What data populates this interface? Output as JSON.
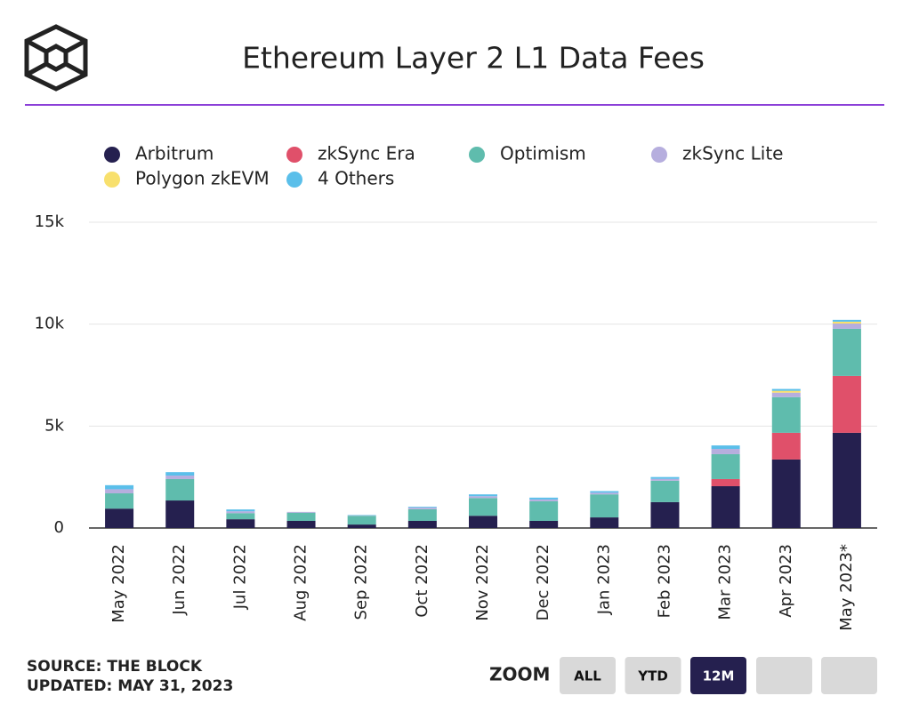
{
  "chart_data": {
    "type": "stacked_bar",
    "title": "Ethereum Layer 2 L1 Data Fees",
    "categories": [
      "May 2022",
      "Jun 2022",
      "Jul 2022",
      "Aug 2022",
      "Sep 2022",
      "Oct 2022",
      "Nov 2022",
      "Dec 2022",
      "Jan 2023",
      "Feb 2023",
      "Mar 2023",
      "Apr 2023",
      "May 2023*"
    ],
    "series": [
      {
        "name": "Arbitrum",
        "color": "#25204f",
        "values": [
          950,
          1350,
          430,
          350,
          170,
          350,
          600,
          350,
          520,
          1270,
          2050,
          3360,
          4670
        ]
      },
      {
        "name": "zkSync Era",
        "color": "#e0506a",
        "values": [
          0,
          0,
          0,
          0,
          0,
          0,
          0,
          0,
          0,
          0,
          350,
          1310,
          2790
        ]
      },
      {
        "name": "Optimism",
        "color": "#5fbcad",
        "values": [
          750,
          1050,
          300,
          400,
          430,
          570,
          870,
          960,
          1130,
          1050,
          1220,
          1750,
          2310
        ]
      },
      {
        "name": "zkSync Lite",
        "color": "#b6aede",
        "values": [
          200,
          170,
          90,
          40,
          20,
          80,
          90,
          90,
          80,
          90,
          260,
          220,
          260
        ]
      },
      {
        "name": "Polygon zkEVM",
        "color": "#f8e06d",
        "values": [
          0,
          0,
          0,
          0,
          0,
          0,
          0,
          0,
          0,
          0,
          0,
          90,
          90
        ]
      },
      {
        "name": "4 Others",
        "color": "#5bbfea",
        "values": [
          200,
          170,
          90,
          0,
          20,
          40,
          90,
          90,
          80,
          90,
          170,
          90,
          90
        ]
      }
    ],
    "ylim": [
      0,
      15000
    ],
    "yticks": [
      0,
      {
        "value": 5000,
        "label": "5k"
      },
      {
        "value": 10000,
        "label": "10k"
      },
      {
        "value": 15000,
        "label": "15k"
      }
    ],
    "grid": true
  },
  "footer": {
    "source": "SOURCE: THE BLOCK",
    "updated": "UPDATED: MAY 31, 2023",
    "zoom": "ZOOM",
    "buttons": [
      "ALL",
      "YTD",
      "12M"
    ]
  }
}
